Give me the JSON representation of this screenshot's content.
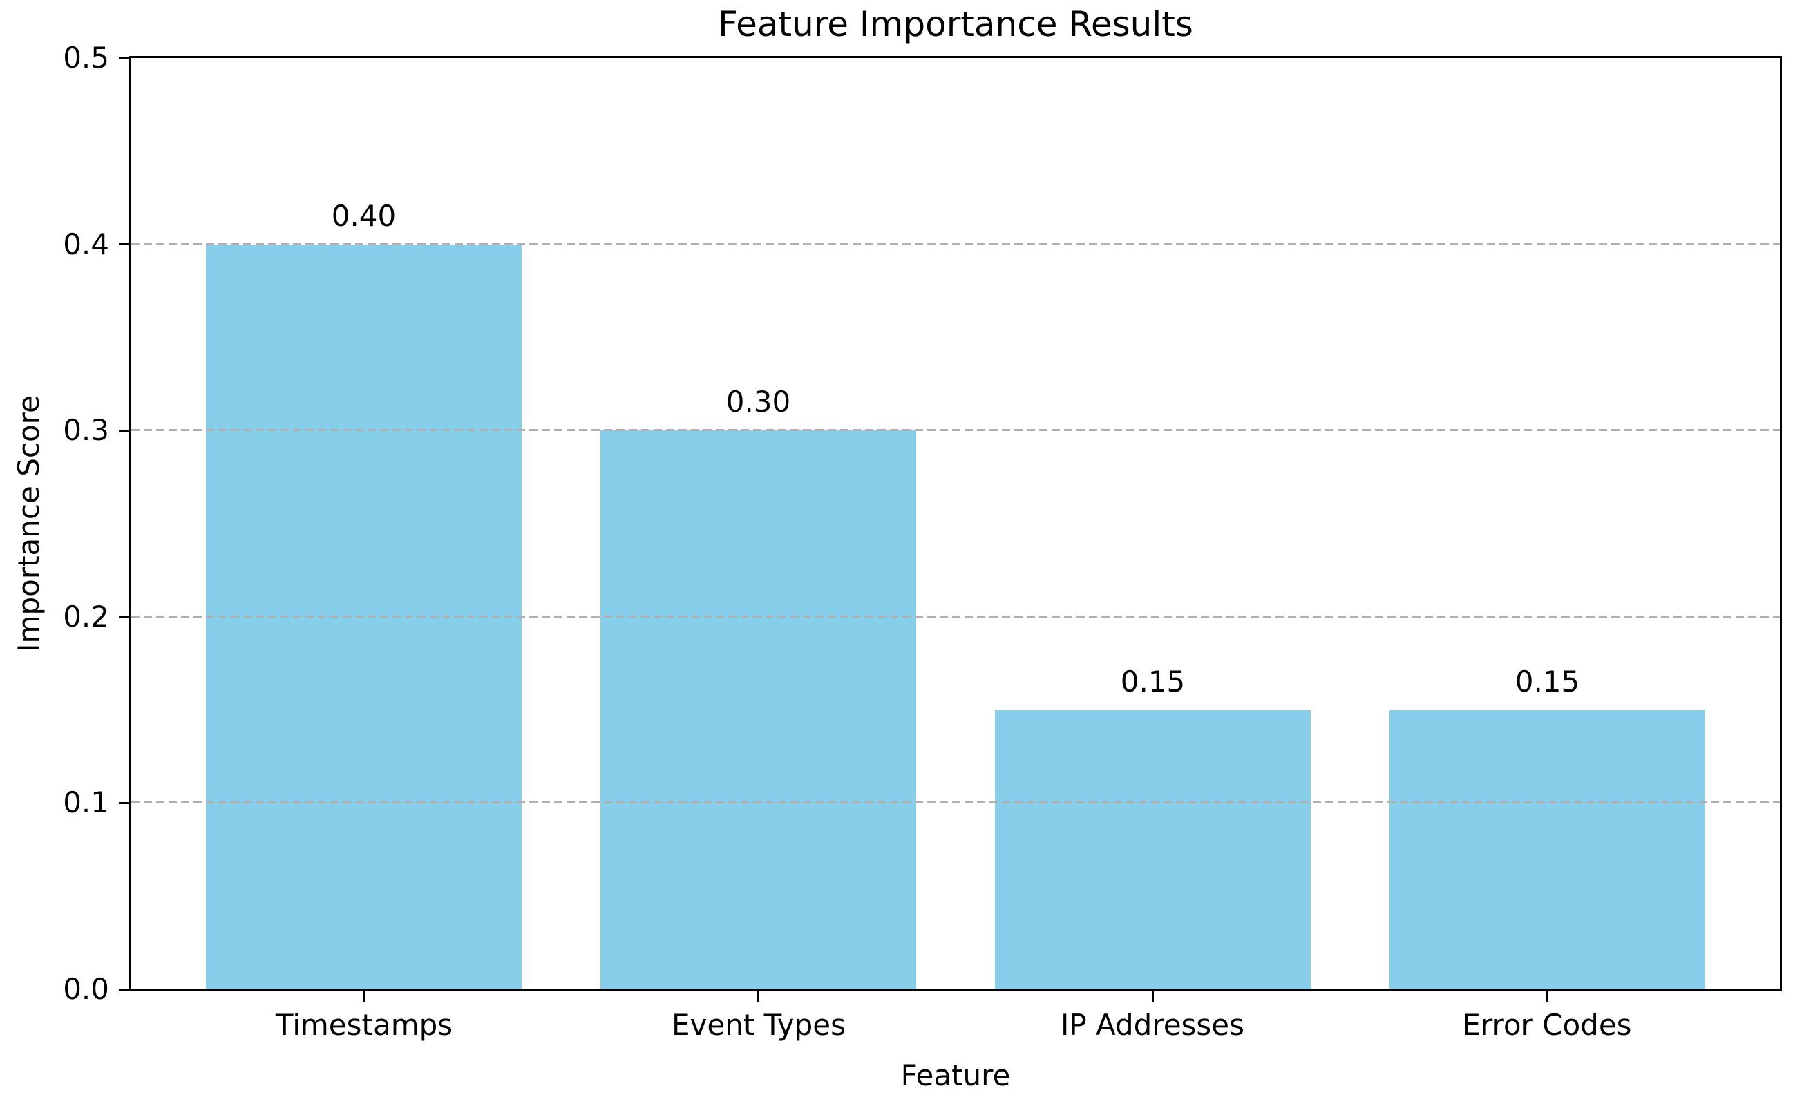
{
  "chart_data": {
    "type": "bar",
    "title": "Feature Importance Results",
    "xlabel": "Feature",
    "ylabel": "Importance Score",
    "categories": [
      "Timestamps",
      "Event Types",
      "IP Addresses",
      "Error Codes"
    ],
    "values": [
      0.4,
      0.3,
      0.15,
      0.15
    ],
    "value_labels": [
      "0.40",
      "0.30",
      "0.15",
      "0.15"
    ],
    "ylim": [
      0.0,
      0.5
    ],
    "yticks": [
      0.0,
      0.1,
      0.2,
      0.3,
      0.4,
      0.5
    ],
    "ytick_labels": [
      "0.0",
      "0.1",
      "0.2",
      "0.3",
      "0.4",
      "0.5"
    ],
    "grid": {
      "axis": "y",
      "style": "dashed",
      "drawn_over_bars": true
    },
    "legend": null,
    "colors": {
      "bar": "#87CEEB",
      "grid": "#b0b0b0",
      "text": "#000000",
      "spine": "#000000",
      "background": "#ffffff"
    }
  }
}
